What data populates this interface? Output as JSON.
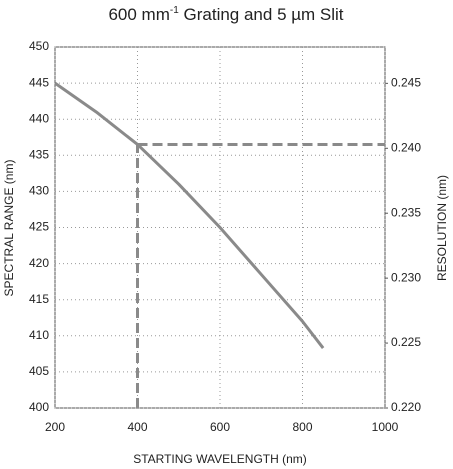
{
  "chart_data": {
    "type": "line",
    "title": [
      "600 mm",
      "-1",
      " Grating and 5 µm Slit"
    ],
    "x_label": "STARTING WAVELENGTH (nm)",
    "y_label": "SPECTRAL RANGE (nm)",
    "y2_label": "RESOLUTION (nm)",
    "x": [
      200,
      300,
      400,
      500,
      600,
      700,
      800,
      850
    ],
    "series": [
      {
        "color": "#8a8a8a",
        "values": [
          445,
          441,
          436.5,
          431,
          425,
          418.5,
          412,
          408.3
        ]
      }
    ],
    "marker": {
      "x": 400,
      "y": 436.5,
      "color": "#8a8a8a"
    },
    "xlim": [
      200,
      1000
    ],
    "xticks": [
      200,
      400,
      600,
      800,
      1000
    ],
    "ylim": [
      400,
      450
    ],
    "yticks": [
      400,
      405,
      410,
      415,
      420,
      425,
      430,
      435,
      440,
      445,
      450
    ],
    "y2lim": [
      0.22,
      0.2478
    ],
    "y2ticks": [
      {
        "value": 0.22,
        "label": "0.220"
      },
      0.225,
      {
        "value": 0.23,
        "label": "0.230"
      },
      0.235,
      {
        "value": 0.24,
        "label": "0.240"
      },
      0.245
    ],
    "grid": true
  }
}
